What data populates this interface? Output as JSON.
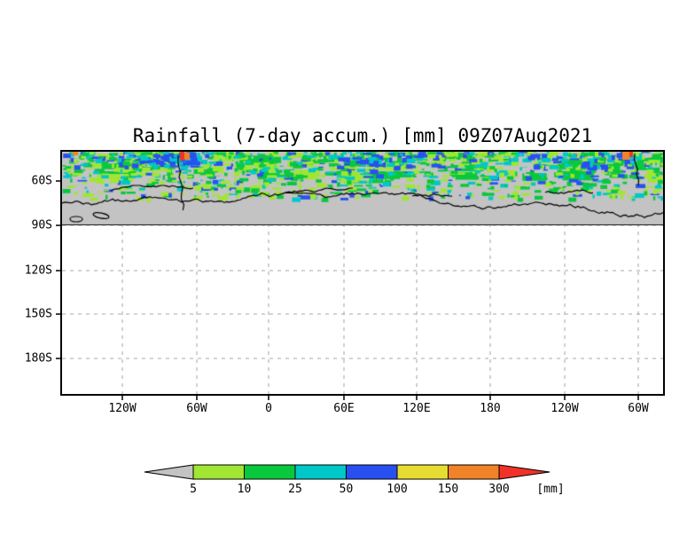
{
  "chart_data": {
    "type": "heatmap",
    "title": "Rainfall (7-day accum.) [mm] 09Z07Aug2021",
    "variable": "Rainfall, 7-day accumulation",
    "unit": "mm",
    "x_axis": {
      "tick_labels": [
        "120W",
        "60W",
        "0",
        "60E",
        "120E",
        "180",
        "120W",
        "60W"
      ]
    },
    "y_axis": {
      "tick_labels": [
        "60S",
        "90S",
        "120S",
        "150S",
        "180S"
      ]
    },
    "color_scale": {
      "levels": [
        5,
        10,
        25,
        50,
        100,
        150,
        300
      ],
      "colors": [
        "#c3c3c3",
        "#a0e632",
        "#0ac83c",
        "#00c8c8",
        "#2850f0",
        "#e6dc32",
        "#f08228",
        "#f03228"
      ],
      "unit_label": "[mm]"
    },
    "legend_position": "bottom",
    "grid": "dashed",
    "background_band_color": "#c3c3c3",
    "coastline_color": "#000000",
    "field_note": "Precipitation shading (greens/cyans/blues with rare orange-red spots) fills the top latitude band down to the 90S gridline; black coastline contours run along the lower part of the band; area below 90S is blank white with dashed gridlines."
  }
}
